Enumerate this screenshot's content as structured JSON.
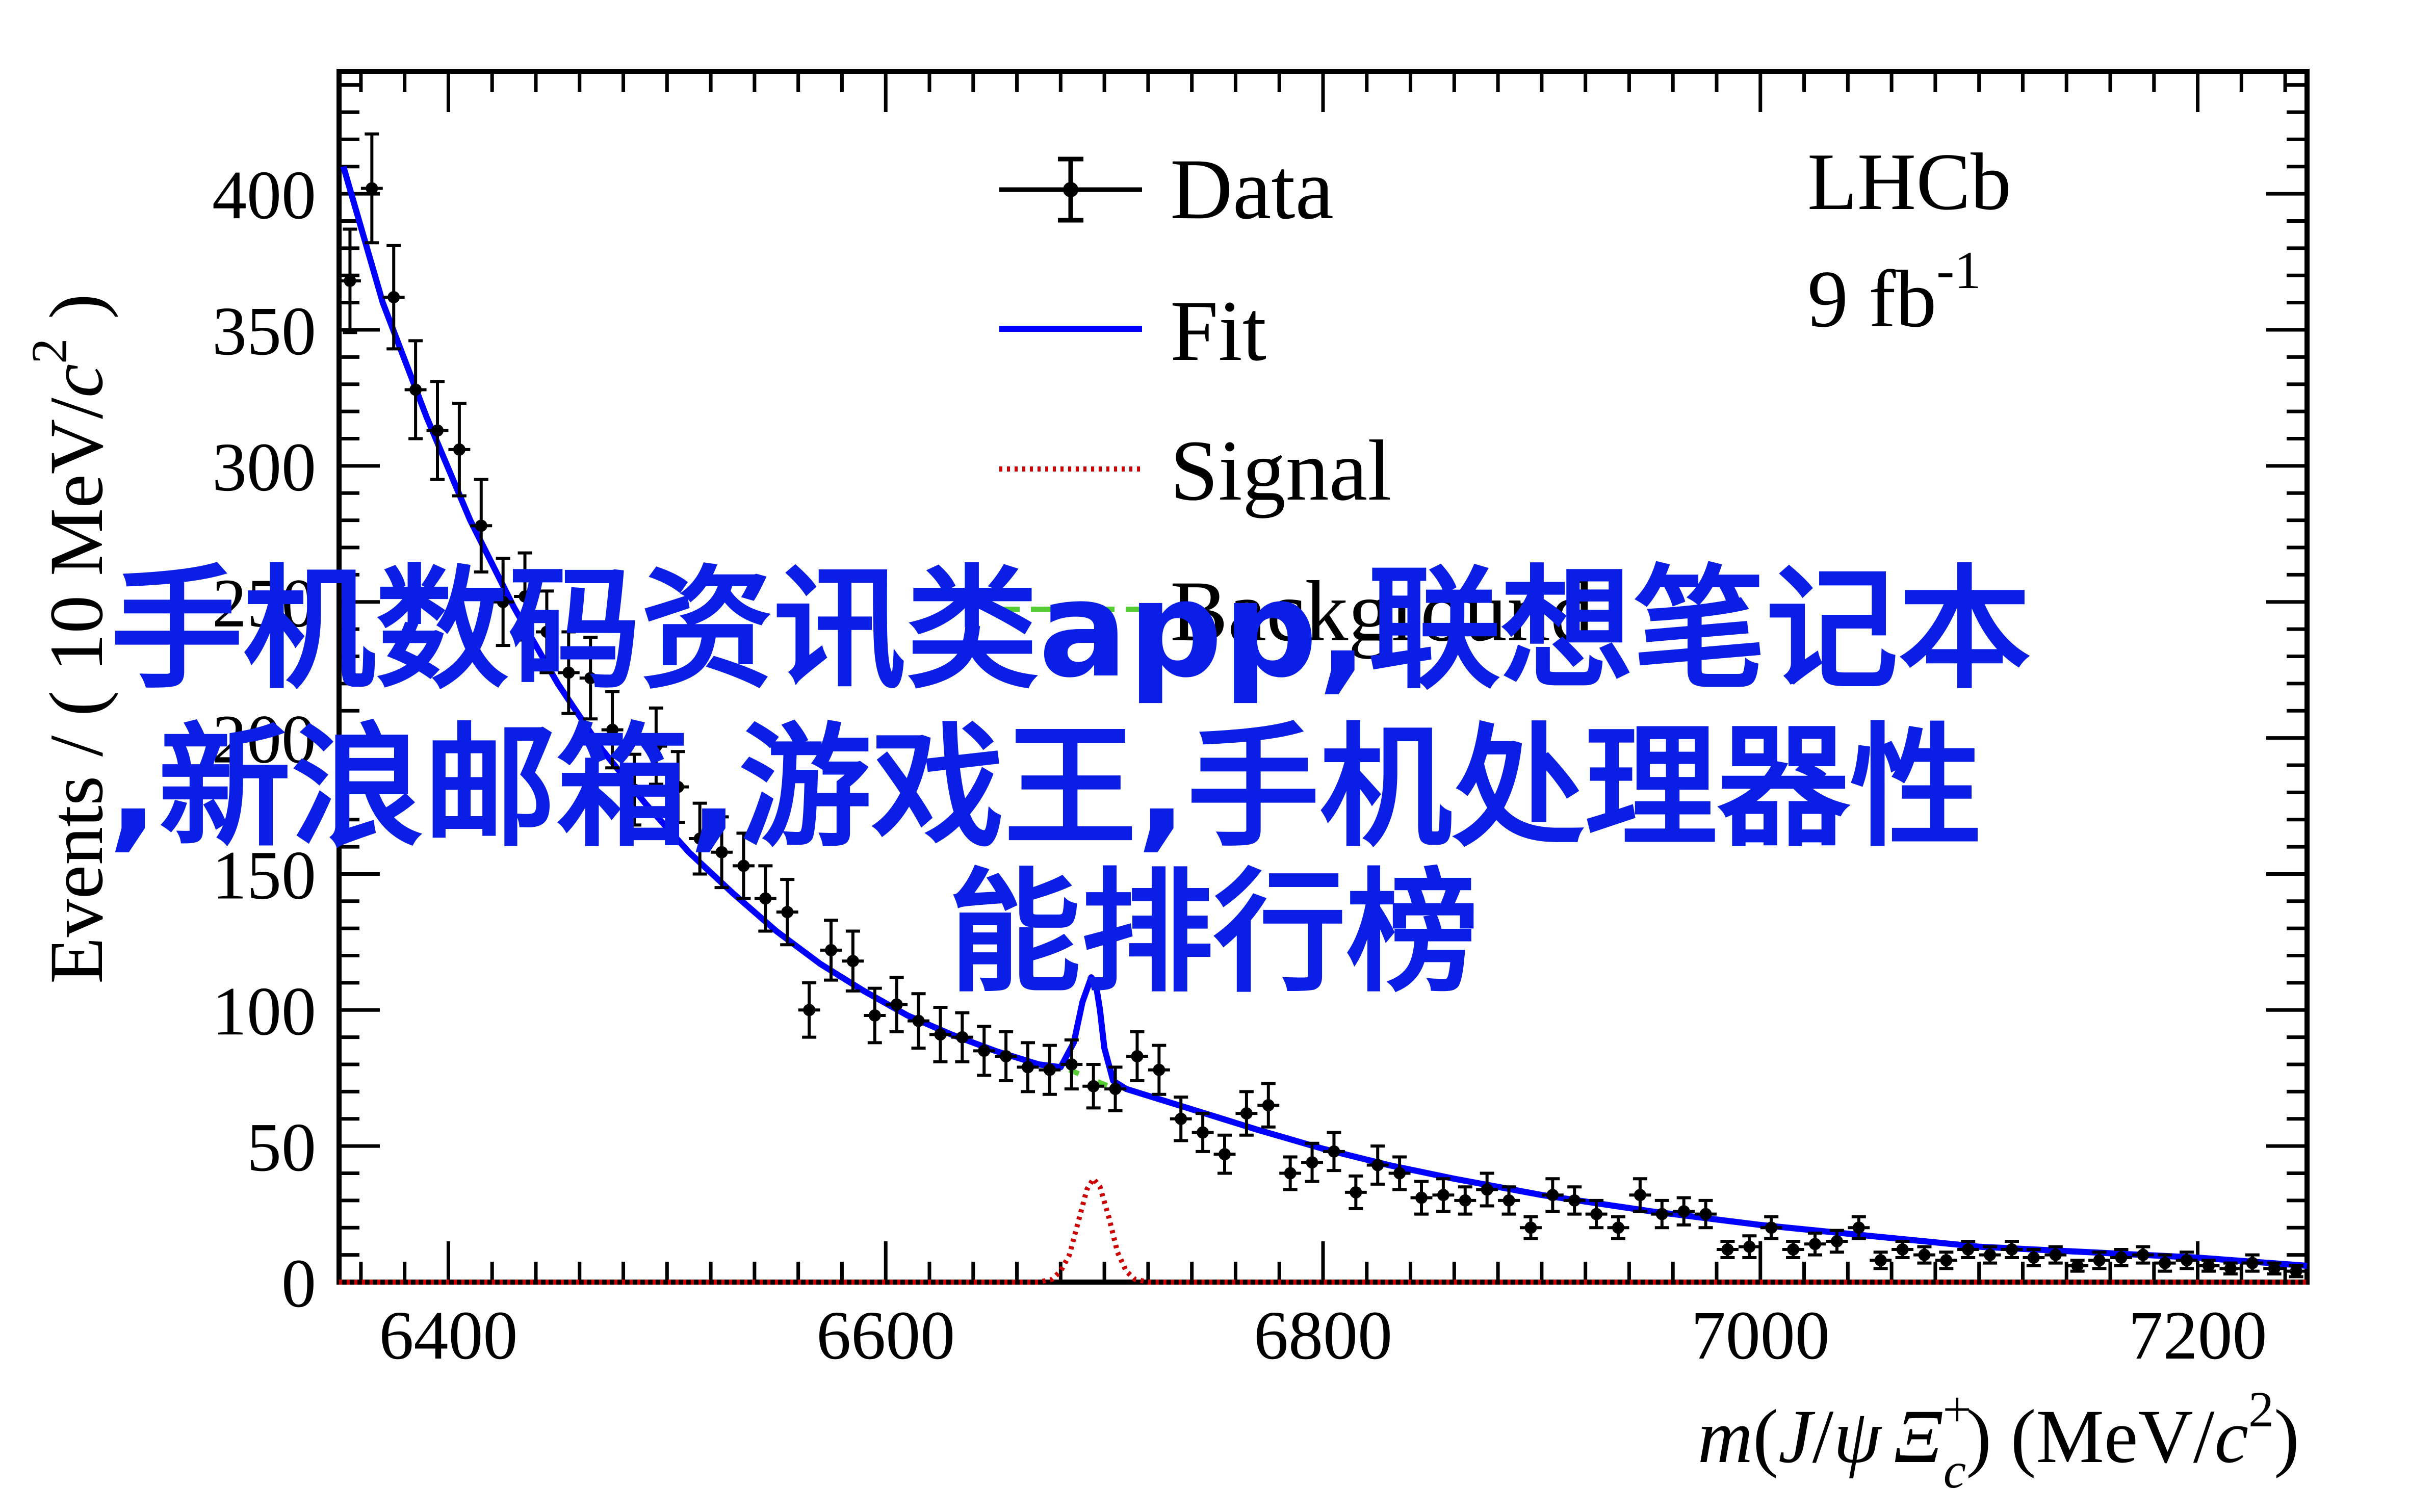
{
  "chart_data": {
    "type": "scatter",
    "experiment": {
      "name": "LHCb",
      "lumi_value": "9 fb",
      "lumi_exp": "-1"
    },
    "xlabel": {
      "italic_m": "m",
      "open": "(",
      "J": "J",
      "slash": "/",
      "psi": "ψ",
      "Xi": "Ξ",
      "Xi_sup": "+",
      "Xi_sub": "c",
      "close": ")",
      "unit": " (MeV/",
      "c": "c",
      "c_sup": "2",
      "end": ")"
    },
    "ylabel": {
      "text": "Events / ( 10 MeV/",
      "c": "c",
      "sup": "2",
      "end": " )"
    },
    "xlim": [
      6350,
      7250
    ],
    "ylim": [
      0,
      445
    ],
    "xticks": [
      6400,
      6600,
      6800,
      7000,
      7200
    ],
    "yticks": [
      0,
      50,
      100,
      150,
      200,
      250,
      300,
      350,
      400
    ],
    "xtick_labels": [
      "6400",
      "6600",
      "6800",
      "7000",
      "7200"
    ],
    "ytick_labels": [
      "0",
      "50",
      "100",
      "150",
      "200",
      "250",
      "300",
      "350",
      "400"
    ],
    "legend": {
      "position": "top-center",
      "entries": [
        {
          "label": "Data",
          "style": "data"
        },
        {
          "label": "Fit",
          "style": "solid",
          "color": "#0000ff"
        },
        {
          "label": "Signal",
          "style": "dotted",
          "color": "#cc0000"
        },
        {
          "label": "Background",
          "style": "dashed",
          "color": "#55cc33"
        }
      ]
    },
    "series": [
      {
        "name": "Data",
        "style": "points",
        "x": [
          6355,
          6365,
          6375,
          6385,
          6395,
          6405,
          6415,
          6425,
          6435,
          6445,
          6455,
          6465,
          6475,
          6485,
          6495,
          6505,
          6515,
          6525,
          6535,
          6545,
          6555,
          6565,
          6575,
          6585,
          6595,
          6605,
          6615,
          6625,
          6635,
          6645,
          6655,
          6665,
          6675,
          6685,
          6695,
          6705,
          6715,
          6725,
          6735,
          6745,
          6755,
          6765,
          6775,
          6785,
          6795,
          6805,
          6815,
          6825,
          6835,
          6845,
          6855,
          6865,
          6875,
          6885,
          6895,
          6905,
          6915,
          6925,
          6935,
          6945,
          6955,
          6965,
          6975,
          6985,
          6995,
          7005,
          7015,
          7025,
          7035,
          7045,
          7055,
          7065,
          7075,
          7085,
          7095,
          7105,
          7115,
          7125,
          7135,
          7145,
          7155,
          7165,
          7175,
          7185,
          7195,
          7205,
          7215,
          7225,
          7235,
          7245
        ],
        "y": [
          368,
          402,
          362,
          328,
          313,
          306,
          278,
          250,
          252,
          239,
          224,
          222,
          203,
          181,
          197,
          182,
          163,
          158,
          153,
          141,
          136,
          100,
          122,
          118,
          98,
          102,
          96,
          91,
          90,
          85,
          83,
          79,
          78,
          80,
          72,
          71,
          83,
          78,
          60,
          55,
          47,
          62,
          65,
          40,
          44,
          48,
          33,
          43,
          40,
          31,
          32,
          30,
          34,
          30,
          20,
          32,
          30,
          25,
          20,
          32,
          25,
          26,
          25,
          12,
          13,
          20,
          12,
          14,
          15,
          20,
          8,
          12,
          10,
          8,
          12,
          10,
          12,
          9,
          10,
          6,
          8,
          9,
          10,
          7,
          8,
          6,
          5,
          7,
          5,
          4
        ],
        "yerr": [
          19,
          20,
          19,
          18,
          18,
          17,
          17,
          16,
          16,
          15,
          15,
          15,
          14,
          13,
          14,
          13,
          13,
          13,
          12,
          12,
          12,
          10,
          11,
          11,
          10,
          10,
          10,
          10,
          9,
          9,
          9,
          9,
          9,
          9,
          8,
          8,
          9,
          9,
          8,
          7,
          7,
          8,
          8,
          6,
          7,
          7,
          6,
          7,
          6,
          6,
          6,
          5,
          6,
          5,
          4,
          6,
          5,
          5,
          4,
          6,
          5,
          5,
          5,
          3,
          4,
          4,
          3,
          4,
          4,
          4,
          3,
          3,
          3,
          3,
          3,
          3,
          3,
          3,
          3,
          2,
          3,
          3,
          3,
          3,
          3,
          2,
          2,
          3,
          2,
          2
        ]
      },
      {
        "name": "Fit",
        "style": "line",
        "color": "#0000ff",
        "x": [
          6352,
          6370,
          6390,
          6410,
          6430,
          6450,
          6470,
          6490,
          6510,
          6530,
          6550,
          6570,
          6590,
          6610,
          6630,
          6650,
          6670,
          6680,
          6686,
          6690,
          6694,
          6696,
          6698,
          6700,
          6704,
          6710,
          6730,
          6750,
          6770,
          6800,
          6830,
          6860,
          6900,
          6950,
          7000,
          7050,
          7100,
          7150,
          7200,
          7250
        ],
        "y": [
          410,
          360,
          318,
          280,
          248,
          220,
          196,
          176,
          158,
          143,
          129,
          117,
          107,
          98,
          91,
          85,
          80,
          79,
          88,
          103,
          112,
          110,
          100,
          86,
          74,
          71,
          66,
          61,
          56,
          49,
          43,
          38,
          32,
          26,
          21,
          17,
          13,
          11,
          9,
          6
        ]
      },
      {
        "name": "Signal",
        "style": "dotted",
        "color": "#cc0000",
        "x": [
          6350,
          6670,
          6676,
          6680,
          6684,
          6688,
          6692,
          6695,
          6698,
          6702,
          6706,
          6710,
          6714,
          6720,
          7250
        ],
        "y": [
          0,
          0,
          1,
          4,
          10,
          22,
          34,
          38,
          35,
          24,
          11,
          4,
          1,
          0,
          0
        ]
      },
      {
        "name": "Background",
        "style": "dashed",
        "color": "#55cc33",
        "x": [
          6684,
          6690,
          6702,
          6708
        ],
        "y": [
          78,
          76,
          72,
          70
        ]
      }
    ]
  },
  "overlay": {
    "line1": "手机数码资讯类app,联想笔记本",
    "line2": ",新浪邮箱,游戏王,手机处理器性",
    "line3": "能排行榜",
    "color": "#0a1ee6"
  }
}
